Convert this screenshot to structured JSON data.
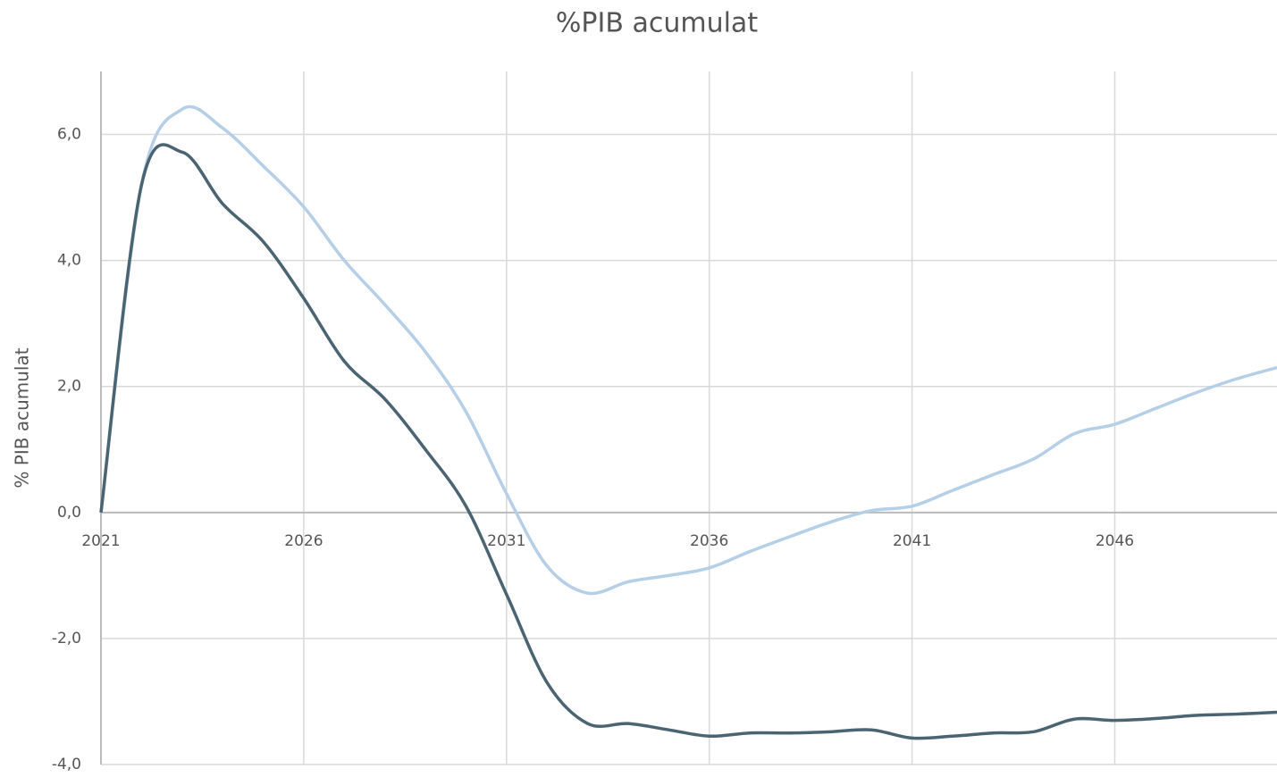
{
  "chart_data": {
    "type": "line",
    "title": "%PIB acumulat",
    "y_label": "% PIB acumulat",
    "x": [
      2021,
      2022,
      2023,
      2024,
      2025,
      2026,
      2027,
      2028,
      2029,
      2030,
      2031,
      2032,
      2033,
      2034,
      2035,
      2036,
      2037,
      2038,
      2039,
      2040,
      2041,
      2042,
      2043,
      2044,
      2045,
      2046,
      2047,
      2048,
      2049,
      2050
    ],
    "series": [
      {
        "color": "#b4cfe6",
        "values": [
          0,
          5.2,
          6.4,
          6.1,
          5.5,
          4.85,
          4.0,
          3.3,
          2.55,
          1.6,
          0.3,
          -0.85,
          -1.28,
          -1.1,
          -1.0,
          -0.88,
          -0.62,
          -0.38,
          -0.15,
          0.03,
          0.1,
          0.35,
          0.6,
          0.85,
          1.25,
          1.4,
          1.65,
          1.9,
          2.12,
          2.3
        ]
      },
      {
        "color": "#4a6472",
        "values": [
          0,
          5.2,
          5.72,
          4.9,
          4.3,
          3.4,
          2.4,
          1.8,
          1.0,
          0.1,
          -1.3,
          -2.7,
          -3.35,
          -3.35,
          -3.45,
          -3.55,
          -3.5,
          -3.5,
          -3.48,
          -3.45,
          -3.58,
          -3.55,
          -3.5,
          -3.48,
          -3.28,
          -3.3,
          -3.27,
          -3.22,
          -3.2,
          -3.17
        ]
      }
    ],
    "xlim": [
      2021,
      2050
    ],
    "xticks": [
      2021,
      2026,
      2031,
      2036,
      2041,
      2046
    ],
    "ylim": [
      -4,
      7
    ],
    "yticks": [
      {
        "value": -4,
        "label": "-4,0"
      },
      {
        "value": -2,
        "label": "-2,0"
      },
      {
        "value": 0,
        "label": "0,0"
      },
      {
        "value": 2,
        "label": "2,0"
      },
      {
        "value": 4,
        "label": "4,0"
      },
      {
        "value": 6,
        "label": "6,0"
      }
    ],
    "grid": true
  }
}
